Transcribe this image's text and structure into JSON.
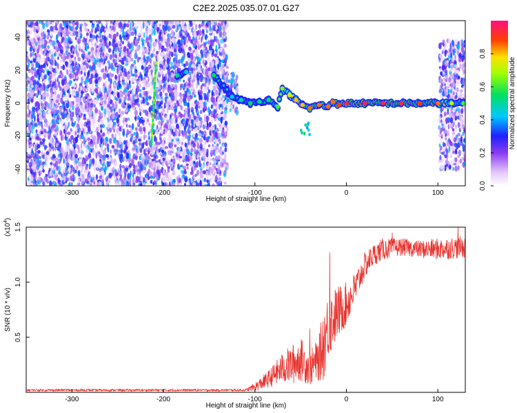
{
  "title": "C2E2.2025.035.07.01.G27",
  "colors": {
    "signal_line": "#e8322d",
    "spectrum_low": "#8a3cf0",
    "ridge": "#e8262a"
  },
  "chart_data": [
    {
      "type": "heatmap",
      "xlabel": "Height of straight line (km)",
      "ylabel": "Frequency (Hz)",
      "xlim": [
        -350,
        130
      ],
      "ylim": [
        -50,
        50
      ],
      "xticks": [
        -300,
        -200,
        -100,
        0,
        100
      ],
      "xtick_labels": [
        "-300",
        "-200",
        "-100",
        "0",
        "100"
      ],
      "yticks": [
        -40,
        -20,
        0,
        20,
        40
      ],
      "ytick_labels": [
        "-40",
        "-20",
        "0",
        "20",
        "40"
      ],
      "colorbar": {
        "label": "Normalized spectral amplitude",
        "range": [
          0,
          1
        ],
        "ticks": [
          0.0,
          0.2,
          0.4,
          0.6,
          0.8
        ],
        "tick_labels": [
          "0.0",
          "0.2",
          "0.4",
          "0.6",
          "0.8"
        ],
        "colormap": "rainbow (white-purple-blue-cyan-green-yellow-red-pink)"
      },
      "noise_regions": [
        {
          "x": [
            -350,
            -130
          ],
          "y": [
            -50,
            50
          ],
          "level": 0.3
        },
        {
          "x": [
            -132,
            -118
          ],
          "y": [
            -6,
            18
          ],
          "level": 0.35
        },
        {
          "x": [
            102,
            130
          ],
          "y": [
            -40,
            38
          ],
          "level": 0.3
        }
      ],
      "vertical_streak": {
        "x": [
          -213,
          -208
        ],
        "y": [
          -25,
          25
        ],
        "level": 0.7
      },
      "ridge": [
        {
          "x": -185,
          "y": 17,
          "level": 0.5
        },
        {
          "x": -175,
          "y": 19,
          "level": 0.45
        },
        {
          "x": -145,
          "y": 17,
          "level": 0.55
        },
        {
          "x": -125,
          "y": 4,
          "level": 0.45
        },
        {
          "x": -115,
          "y": 2,
          "level": 0.5
        },
        {
          "x": -105,
          "y": 0,
          "level": 0.55
        },
        {
          "x": -95,
          "y": 1,
          "level": 0.5
        },
        {
          "x": -85,
          "y": 2,
          "level": 0.55
        },
        {
          "x": -75,
          "y": -2,
          "level": 0.6
        },
        {
          "x": -70,
          "y": 9,
          "level": 0.65
        },
        {
          "x": -62,
          "y": 5,
          "level": 0.75
        },
        {
          "x": -55,
          "y": 2,
          "level": 0.8
        },
        {
          "x": -48,
          "y": -1,
          "level": 0.8
        },
        {
          "x": -40,
          "y": -3,
          "level": 0.85
        },
        {
          "x": -30,
          "y": -1,
          "level": 0.85
        },
        {
          "x": -20,
          "y": -2,
          "level": 0.85
        },
        {
          "x": -15,
          "y": 1,
          "level": 0.85
        },
        {
          "x": -8,
          "y": -1,
          "level": 0.9
        },
        {
          "x": 0,
          "y": 0,
          "level": 0.95
        },
        {
          "x": 20,
          "y": 0,
          "level": 0.95
        },
        {
          "x": 40,
          "y": 0,
          "level": 0.95
        },
        {
          "x": 60,
          "y": 0,
          "level": 0.95
        },
        {
          "x": 80,
          "y": 0,
          "level": 0.9
        },
        {
          "x": 100,
          "y": 0,
          "level": 0.85
        },
        {
          "x": 115,
          "y": 0,
          "level": 0.7
        },
        {
          "x": 128,
          "y": 0,
          "level": 0.6
        }
      ],
      "side_blob": {
        "x": [
          -50,
          -40
        ],
        "y": [
          -20,
          -12
        ],
        "level": 0.55
      }
    },
    {
      "type": "line",
      "xlabel": "Height of straight line (km)",
      "ylabel": "SNR (10 * v/v)",
      "y_multiplier": "(x10",
      "y_multiplier_exp": "4",
      "y_multiplier_close": ")",
      "xlim": [
        -350,
        130
      ],
      "ylim": [
        0,
        1.5
      ],
      "xticks": [
        -300,
        -200,
        -100,
        0,
        100
      ],
      "xtick_labels": [
        "-300",
        "-200",
        "-100",
        "0",
        "100"
      ],
      "yticks": [
        0.5,
        1.0,
        1.5
      ],
      "ytick_labels": [
        "0.5",
        "1.0",
        "1.5"
      ],
      "series": [
        {
          "color": "#e8322d",
          "envelope": {
            "x": [
              -350,
              -110,
              -100,
              -85,
              -70,
              -60,
              -50,
              -40,
              -30,
              -25,
              -20,
              -10,
              0,
              10,
              20,
              30,
              40,
              60,
              80,
              100,
              130
            ],
            "mean": [
              0.02,
              0.02,
              0.05,
              0.12,
              0.22,
              0.25,
              0.3,
              0.22,
              0.3,
              0.45,
              0.6,
              0.72,
              0.8,
              0.95,
              1.15,
              1.25,
              1.3,
              1.32,
              1.3,
              1.3,
              1.32
            ],
            "spread": [
              0.01,
              0.01,
              0.04,
              0.08,
              0.14,
              0.18,
              0.2,
              0.16,
              0.2,
              0.35,
              0.3,
              0.25,
              0.2,
              0.15,
              0.12,
              0.1,
              0.1,
              0.08,
              0.08,
              0.1,
              0.1
            ]
          },
          "peaks": [
            {
              "x": -40,
              "y": 0.58
            },
            {
              "x": -18,
              "y": 1.27
            },
            {
              "x": 50,
              "y": 1.45
            },
            {
              "x": 110,
              "y": 1.38
            },
            {
              "x": 122,
              "y": 1.5
            }
          ]
        }
      ]
    }
  ]
}
